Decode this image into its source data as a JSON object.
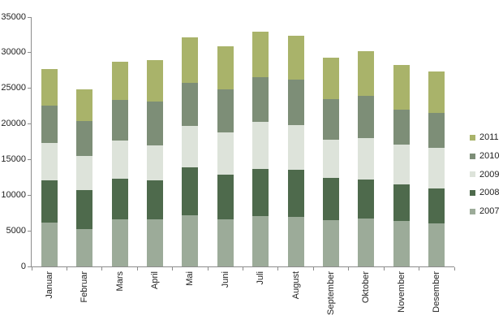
{
  "chart_data": {
    "type": "bar",
    "stacked": true,
    "title": "",
    "xlabel": "",
    "ylabel": "",
    "categories": [
      "Januar",
      "Februar",
      "Mars",
      "April",
      "Mai",
      "Juni",
      "Juli",
      "August",
      "September",
      "Oktober",
      "November",
      "Desember"
    ],
    "series": [
      {
        "name": "2007",
        "color": "#9cab99",
        "values": [
          6200,
          5300,
          6600,
          6600,
          7200,
          6600,
          7100,
          6900,
          6500,
          6700,
          6400,
          6100
        ]
      },
      {
        "name": "2008",
        "color": "#4e6a4c",
        "values": [
          5900,
          5400,
          5700,
          5500,
          6700,
          6300,
          6600,
          6700,
          5900,
          5500,
          5100,
          4800
        ]
      },
      {
        "name": "2009",
        "color": "#dde3da",
        "values": [
          5200,
          4800,
          5400,
          4900,
          5800,
          5900,
          6600,
          6200,
          5400,
          5800,
          5600,
          5700
        ]
      },
      {
        "name": "2010",
        "color": "#7d8e77",
        "values": [
          5300,
          4900,
          5700,
          6200,
          6100,
          6100,
          6300,
          6400,
          5700,
          5900,
          4900,
          4900
        ]
      },
      {
        "name": "2011",
        "color": "#a9b36a",
        "values": [
          5100,
          4500,
          5300,
          5800,
          6400,
          6000,
          6400,
          6200,
          5800,
          6300,
          6300,
          5900
        ]
      }
    ],
    "stack_order": "first-series-at-bottom",
    "totals": [
      27700,
      24900,
      28700,
      29000,
      32200,
      30900,
      33000,
      32400,
      29300,
      30200,
      28300,
      27400
    ],
    "ylim": [
      0,
      35000
    ],
    "y_tick_step": 5000,
    "y_tick_labels": [
      "0",
      "5000",
      "10000",
      "15000",
      "20000",
      "25000",
      "30000",
      "35000"
    ],
    "x_labels_rotated_degrees": 90,
    "grid": false,
    "legend": {
      "position": "right",
      "items_top_to_bottom": [
        "2011",
        "2010",
        "2009",
        "2008",
        "2007"
      ]
    },
    "colors": {
      "axis": "#8c8c8c",
      "text": "#1f1f1f",
      "background": "#ffffff"
    }
  }
}
